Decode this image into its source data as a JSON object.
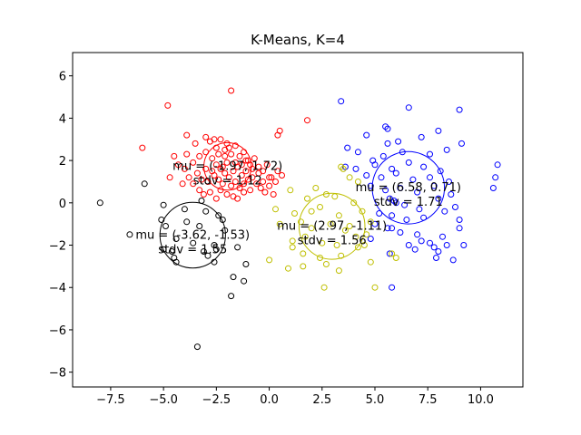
{
  "chart_data": {
    "type": "scatter",
    "title": "K-Means, K=4",
    "xlabel": "",
    "ylabel": "",
    "xlim": [
      -9.3,
      12.0
    ],
    "ylim": [
      -8.7,
      7.1
    ],
    "x_ticks": [
      -7.5,
      -5.0,
      -2.5,
      0.0,
      2.5,
      5.0,
      7.5,
      10.0
    ],
    "x_tick_labels": [
      "−7.5",
      "−5.0",
      "−2.5",
      "0.0",
      "2.5",
      "5.0",
      "7.5",
      "10.0"
    ],
    "y_ticks": [
      -8,
      -6,
      -4,
      -2,
      0,
      2,
      4,
      6
    ],
    "y_tick_labels": [
      "−8",
      "−6",
      "−4",
      "−2",
      "0",
      "2",
      "4",
      "6"
    ],
    "grid": false,
    "legend": "none",
    "marker": "hollow-circle",
    "clusters": [
      {
        "color": "#ff0000",
        "mu": [
          -1.97,
          1.72
        ],
        "stdv": 1.12,
        "label_mu": "mu = (-1.97, 1.72)",
        "label_stdv": "stdv = 1.12",
        "points": [
          [
            -4.8,
            4.6
          ],
          [
            -1.8,
            5.3
          ],
          [
            1.8,
            3.9
          ],
          [
            0.5,
            3.4
          ],
          [
            0.4,
            3.2
          ],
          [
            -6.0,
            2.6
          ],
          [
            -3.9,
            3.2
          ],
          [
            -3.5,
            2.8
          ],
          [
            -3.3,
            2.2
          ],
          [
            -3.0,
            3.1
          ],
          [
            -2.8,
            2.9
          ],
          [
            -2.6,
            3.0
          ],
          [
            -2.5,
            2.6
          ],
          [
            -2.3,
            3.0
          ],
          [
            -2.1,
            2.5
          ],
          [
            -2.0,
            2.8
          ],
          [
            -1.8,
            2.3
          ],
          [
            -1.6,
            2.7
          ],
          [
            -1.4,
            2.2
          ],
          [
            -1.2,
            2.4
          ],
          [
            -1.1,
            2.0
          ],
          [
            -0.9,
            1.8
          ],
          [
            -0.7,
            2.1
          ],
          [
            -0.5,
            1.7
          ],
          [
            -0.3,
            1.5
          ],
          [
            -0.1,
            1.8
          ],
          [
            0.1,
            1.2
          ],
          [
            0.3,
            1.0
          ],
          [
            -4.0,
            1.6
          ],
          [
            -3.8,
            1.2
          ],
          [
            -3.6,
            1.9
          ],
          [
            -3.4,
            1.4
          ],
          [
            -3.2,
            1.1
          ],
          [
            -3.0,
            1.6
          ],
          [
            -2.9,
            1.0
          ],
          [
            -2.7,
            1.5
          ],
          [
            -2.6,
            1.3
          ],
          [
            -2.5,
            1.8
          ],
          [
            -2.4,
            1.1
          ],
          [
            -2.3,
            1.6
          ],
          [
            -2.2,
            0.9
          ],
          [
            -2.1,
            1.4
          ],
          [
            -2.0,
            1.9
          ],
          [
            -1.9,
            1.2
          ],
          [
            -1.8,
            0.8
          ],
          [
            -1.7,
            1.5
          ],
          [
            -1.6,
            1.0
          ],
          [
            -1.5,
            1.7
          ],
          [
            -1.4,
            0.7
          ],
          [
            -1.3,
            1.3
          ],
          [
            -1.2,
            0.9
          ],
          [
            -1.1,
            1.5
          ],
          [
            -1.0,
            1.1
          ],
          [
            -0.9,
            0.6
          ],
          [
            -0.8,
            1.2
          ],
          [
            -0.6,
            0.9
          ],
          [
            -0.4,
            0.7
          ],
          [
            -0.2,
            0.5
          ],
          [
            0.0,
            0.8
          ],
          [
            0.2,
            0.4
          ],
          [
            -4.5,
            2.2
          ],
          [
            -4.3,
            1.8
          ],
          [
            -4.7,
            1.2
          ],
          [
            -3.1,
            0.4
          ],
          [
            -2.8,
            0.5
          ],
          [
            -2.5,
            0.2
          ],
          [
            -2.3,
            0.6
          ],
          [
            -2.0,
            0.4
          ],
          [
            -1.7,
            0.3
          ],
          [
            -1.5,
            0.2
          ],
          [
            -3.6,
            0.9
          ],
          [
            -3.3,
            0.6
          ],
          [
            -2.7,
            2.1
          ],
          [
            -2.4,
            2.3
          ],
          [
            -2.1,
            2.2
          ],
          [
            -1.9,
            2.6
          ],
          [
            -1.6,
            1.9
          ],
          [
            -1.3,
            1.8
          ],
          [
            -1.0,
            2.0
          ],
          [
            -0.8,
            1.6
          ],
          [
            -0.5,
            1.4
          ],
          [
            0.0,
            1.2
          ],
          [
            0.4,
            1.5
          ],
          [
            -3.9,
            2.3
          ],
          [
            -4.1,
            0.9
          ],
          [
            -3.0,
            2.4
          ],
          [
            -2.2,
            1.7
          ],
          [
            -1.2,
            0.5
          ],
          [
            -0.3,
            1.0
          ],
          [
            0.6,
            1.3
          ]
        ]
      },
      {
        "color": "#0000ff",
        "mu": [
          6.58,
          0.71
        ],
        "stdv": 1.71,
        "label_mu": "mu = (6.58, 0.71)",
        "label_stdv": "stdv = 1.71",
        "points": [
          [
            3.4,
            4.8
          ],
          [
            6.6,
            4.5
          ],
          [
            9.0,
            4.4
          ],
          [
            5.5,
            3.6
          ],
          [
            5.6,
            3.5
          ],
          [
            4.6,
            3.2
          ],
          [
            3.7,
            2.6
          ],
          [
            6.1,
            2.9
          ],
          [
            5.6,
            2.8
          ],
          [
            7.2,
            3.1
          ],
          [
            8.0,
            3.4
          ],
          [
            9.1,
            2.8
          ],
          [
            4.2,
            2.4
          ],
          [
            4.9,
            2.0
          ],
          [
            5.4,
            2.2
          ],
          [
            6.3,
            2.4
          ],
          [
            7.6,
            2.3
          ],
          [
            8.4,
            2.5
          ],
          [
            3.6,
            1.7
          ],
          [
            4.1,
            1.6
          ],
          [
            5.0,
            1.8
          ],
          [
            5.8,
            1.6
          ],
          [
            6.6,
            1.9
          ],
          [
            7.3,
            1.7
          ],
          [
            8.1,
            1.5
          ],
          [
            4.6,
            1.3
          ],
          [
            5.3,
            1.2
          ],
          [
            6.0,
            1.4
          ],
          [
            6.8,
            1.1
          ],
          [
            7.6,
            1.2
          ],
          [
            8.5,
            1.0
          ],
          [
            10.8,
            1.8
          ],
          [
            10.7,
            1.2
          ],
          [
            10.6,
            0.7
          ],
          [
            4.8,
            0.8
          ],
          [
            5.5,
            0.6
          ],
          [
            6.2,
            0.7
          ],
          [
            7.0,
            0.5
          ],
          [
            7.8,
            0.8
          ],
          [
            8.6,
            0.4
          ],
          [
            5.7,
            0.2
          ],
          [
            5.9,
            0.1
          ],
          [
            6.0,
            0.0
          ],
          [
            6.4,
            -0.1
          ],
          [
            7.1,
            -0.3
          ],
          [
            8.0,
            0.2
          ],
          [
            8.8,
            -0.2
          ],
          [
            5.2,
            -0.5
          ],
          [
            5.8,
            -0.6
          ],
          [
            6.5,
            -0.8
          ],
          [
            7.3,
            -0.7
          ],
          [
            8.3,
            -0.4
          ],
          [
            9.0,
            -0.8
          ],
          [
            5.0,
            -1.0
          ],
          [
            5.6,
            -1.2
          ],
          [
            5.8,
            -1.2
          ],
          [
            6.2,
            -1.4
          ],
          [
            7.0,
            -1.5
          ],
          [
            7.6,
            -1.9
          ],
          [
            8.2,
            -1.6
          ],
          [
            9.0,
            -1.2
          ],
          [
            6.6,
            -2.0
          ],
          [
            7.2,
            -1.8
          ],
          [
            7.8,
            -2.1
          ],
          [
            8.0,
            -2.3
          ],
          [
            5.7,
            -2.4
          ],
          [
            8.4,
            -2.0
          ],
          [
            7.9,
            -2.6
          ],
          [
            8.7,
            -2.7
          ],
          [
            9.2,
            -2.0
          ],
          [
            5.8,
            -4.0
          ],
          [
            4.8,
            -1.7
          ],
          [
            6.9,
            -2.2
          ]
        ]
      },
      {
        "color": "#bfbf00",
        "mu": [
          2.97,
          -1.11
        ],
        "stdv": 1.56,
        "label_mu": "mu = (2.97, -1.11)",
        "label_stdv": "stdv = 1.56",
        "points": [
          [
            3.4,
            1.7
          ],
          [
            3.5,
            1.6
          ],
          [
            3.8,
            1.2
          ],
          [
            4.2,
            1.0
          ],
          [
            1.0,
            0.6
          ],
          [
            2.2,
            0.7
          ],
          [
            2.7,
            0.4
          ],
          [
            3.1,
            0.3
          ],
          [
            4.0,
            0.0
          ],
          [
            1.8,
            0.2
          ],
          [
            0.3,
            -0.3
          ],
          [
            1.2,
            -0.5
          ],
          [
            2.4,
            -0.2
          ],
          [
            3.3,
            -0.6
          ],
          [
            4.4,
            -0.4
          ],
          [
            4.8,
            -0.9
          ],
          [
            0.5,
            -1.0
          ],
          [
            1.5,
            -0.9
          ],
          [
            2.0,
            -1.2
          ],
          [
            2.9,
            -1.0
          ],
          [
            3.6,
            -1.3
          ],
          [
            4.1,
            -1.6
          ],
          [
            4.6,
            -1.5
          ],
          [
            1.1,
            -1.8
          ],
          [
            1.7,
            -1.6
          ],
          [
            2.5,
            -1.9
          ],
          [
            3.2,
            -2.0
          ],
          [
            4.2,
            -2.1
          ],
          [
            4.5,
            -2.0
          ],
          [
            1.1,
            -2.1
          ],
          [
            1.6,
            -2.4
          ],
          [
            2.4,
            -2.6
          ],
          [
            3.4,
            -2.5
          ],
          [
            5.8,
            -2.4
          ],
          [
            6.0,
            -2.6
          ],
          [
            1.6,
            -3.0
          ],
          [
            2.7,
            -2.9
          ],
          [
            3.3,
            -3.2
          ],
          [
            0.9,
            -3.1
          ],
          [
            4.8,
            -2.8
          ],
          [
            2.6,
            -4.0
          ],
          [
            5.0,
            -4.0
          ],
          [
            3.8,
            -1.1
          ],
          [
            2.0,
            -0.4
          ],
          [
            0.0,
            -2.7
          ]
        ]
      },
      {
        "color": "#000000",
        "mu": [
          -3.62,
          -1.53
        ],
        "stdv": 1.55,
        "label_mu": "mu = (-3.62, -1.53)",
        "label_stdv": "stdv = 1.55",
        "points": [
          [
            -8.0,
            0.0
          ],
          [
            -5.9,
            0.9
          ],
          [
            -3.2,
            0.1
          ],
          [
            -5.0,
            -0.1
          ],
          [
            -4.0,
            -0.3
          ],
          [
            -3.0,
            -0.4
          ],
          [
            -2.4,
            -0.6
          ],
          [
            -5.1,
            -0.8
          ],
          [
            -3.9,
            -0.9
          ],
          [
            -2.2,
            -0.8
          ],
          [
            -4.9,
            -1.1
          ],
          [
            -3.3,
            -1.1
          ],
          [
            -2.1,
            -1.3
          ],
          [
            -6.6,
            -1.5
          ],
          [
            -4.4,
            -1.7
          ],
          [
            -3.6,
            -1.9
          ],
          [
            -2.6,
            -2.0
          ],
          [
            -5.0,
            -2.2
          ],
          [
            -4.6,
            -2.3
          ],
          [
            -3.1,
            -2.3
          ],
          [
            -2.5,
            -2.2
          ],
          [
            -1.5,
            -2.1
          ],
          [
            -4.5,
            -2.6
          ],
          [
            -2.9,
            -2.5
          ],
          [
            -4.4,
            -2.8
          ],
          [
            -2.6,
            -2.8
          ],
          [
            -1.1,
            -2.9
          ],
          [
            -1.7,
            -3.5
          ],
          [
            -1.2,
            -3.7
          ],
          [
            -1.8,
            -4.4
          ],
          [
            -3.4,
            -6.8
          ]
        ]
      }
    ]
  }
}
